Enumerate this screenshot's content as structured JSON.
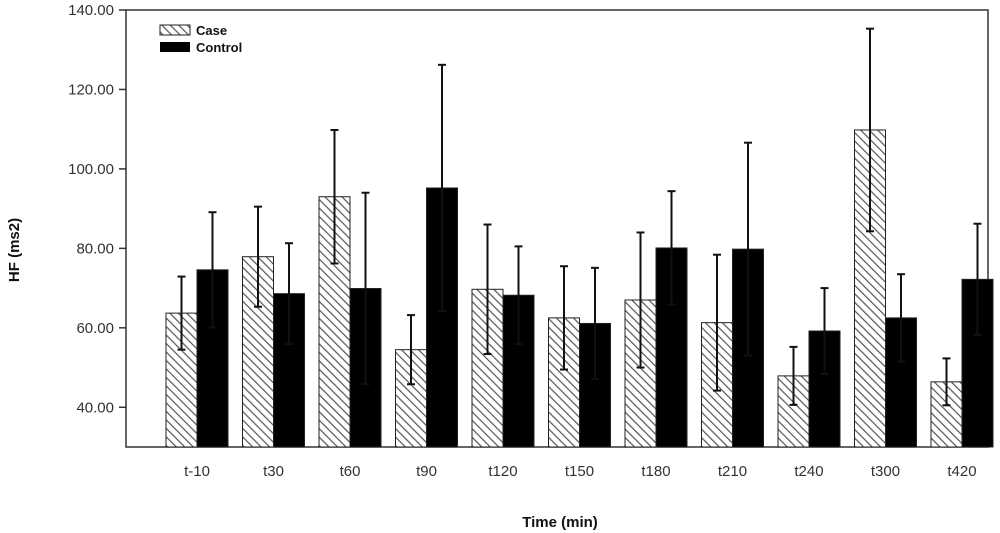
{
  "chart_data": {
    "type": "bar",
    "xlabel": "Time (min)",
    "ylabel": "HF (ms2)",
    "ylim": [
      30,
      140
    ],
    "yticks": [
      "40.00",
      "60.00",
      "80.00",
      "100.00",
      "120.00",
      "140.00"
    ],
    "categories": [
      "t-10",
      "t30",
      "t60",
      "t90",
      "t120",
      "t150",
      "t180",
      "t210",
      "t240",
      "t300",
      "t420"
    ],
    "grid": false,
    "legend_position": "top-left",
    "series": [
      {
        "name": "Case",
        "pattern": "hatched",
        "values": [
          63.7,
          77.9,
          93.0,
          54.5,
          69.7,
          62.5,
          67.0,
          61.3,
          47.9,
          109.8,
          46.4
        ],
        "error": [
          9.2,
          12.6,
          16.8,
          8.7,
          16.3,
          13.0,
          17.0,
          17.1,
          7.3,
          25.5,
          5.9
        ]
      },
      {
        "name": "Control",
        "pattern": "solid",
        "values": [
          74.6,
          68.6,
          69.9,
          95.2,
          68.2,
          61.1,
          80.1,
          79.8,
          59.2,
          62.5,
          72.2
        ],
        "error": [
          14.5,
          12.7,
          24.1,
          31.0,
          12.3,
          14.0,
          14.3,
          26.8,
          10.8,
          11.0,
          14.0
        ]
      }
    ],
    "colors": {
      "control": "#000000",
      "case_fill": "#ffffff",
      "hatch": "#555555",
      "axis": "#333333"
    }
  }
}
